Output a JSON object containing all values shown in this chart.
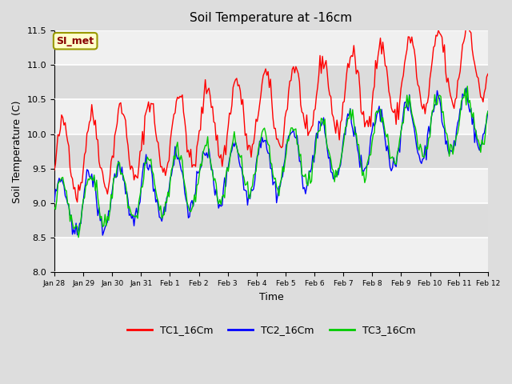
{
  "title": "Soil Temperature at -16cm",
  "xlabel": "Time",
  "ylabel": "Soil Temperature (C)",
  "ylim": [
    8.0,
    11.5
  ],
  "yticks": [
    8.0,
    8.5,
    9.0,
    9.5,
    10.0,
    10.5,
    11.0,
    11.5
  ],
  "xtick_labels": [
    "Jan 28",
    "Jan 29",
    "Jan 30",
    "Jan 31",
    "Feb 1",
    "Feb 2",
    "Feb 3",
    "Feb 4",
    "Feb 5",
    "Feb 6",
    "Feb 7",
    "Feb 8",
    "Feb 9",
    "Feb 10",
    "Feb 11",
    "Feb 12"
  ],
  "colors": {
    "TC1": "#ff0000",
    "TC2": "#0000ff",
    "TC3": "#00cc00"
  },
  "legend_labels": [
    "TC1_16Cm",
    "TC2_16Cm",
    "TC3_16Cm"
  ],
  "annotation_text": "SI_met",
  "annotation_bg": "#ffffcc",
  "annotation_border": "#999900",
  "annotation_text_color": "#880000",
  "background_color": "#dddddd",
  "plot_bg_light": "#f0f0f0",
  "plot_bg_dark": "#dcdcdc",
  "grid_color": "#ffffff",
  "linewidth": 1.0,
  "n_days": 15,
  "points_per_day": 24
}
